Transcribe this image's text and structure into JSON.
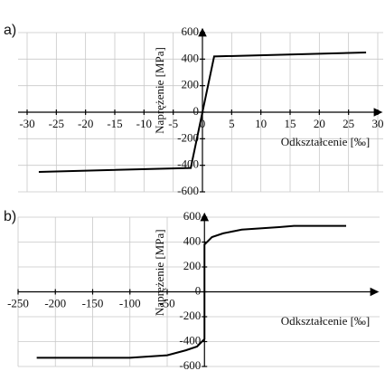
{
  "chart_data": [
    {
      "type": "line",
      "panel_label": "a)",
      "xlabel": "Odkształcenie [‰]",
      "ylabel": "Naprężenie [MPa]",
      "series": [
        {
          "color": "#000000",
          "x": [
            -28,
            -2,
            2,
            28
          ],
          "values": [
            -450,
            -420,
            420,
            450
          ]
        }
      ],
      "xlim": [
        -30,
        30
      ],
      "xticks": [
        -30,
        -25,
        -20,
        -15,
        -10,
        -5,
        0,
        5,
        10,
        15,
        20,
        25,
        30
      ],
      "ylim": [
        -600,
        600
      ],
      "yticks": [
        -600,
        -400,
        -200,
        0,
        200,
        400,
        600
      ],
      "grid": true
    },
    {
      "type": "line",
      "panel_label": "b)",
      "xlabel": "Odkształcenie [‰]",
      "ylabel": "Naprężenie [MPa]",
      "series": [
        {
          "color": "#000000",
          "x": [
            -225,
            -100,
            -50,
            -25,
            -10,
            0,
            0,
            10,
            25,
            50,
            100,
            120,
            190
          ],
          "values": [
            -530,
            -530,
            -510,
            -470,
            -440,
            -380,
            380,
            440,
            470,
            500,
            520,
            530,
            530
          ]
        }
      ],
      "xlim": [
        -250,
        230
      ],
      "xticks": [
        -250,
        -200,
        -150,
        -100,
        -50
      ],
      "ylim": [
        -600,
        600
      ],
      "yticks": [
        -600,
        -400,
        -200,
        0,
        200,
        400,
        600
      ],
      "grid": true
    }
  ]
}
